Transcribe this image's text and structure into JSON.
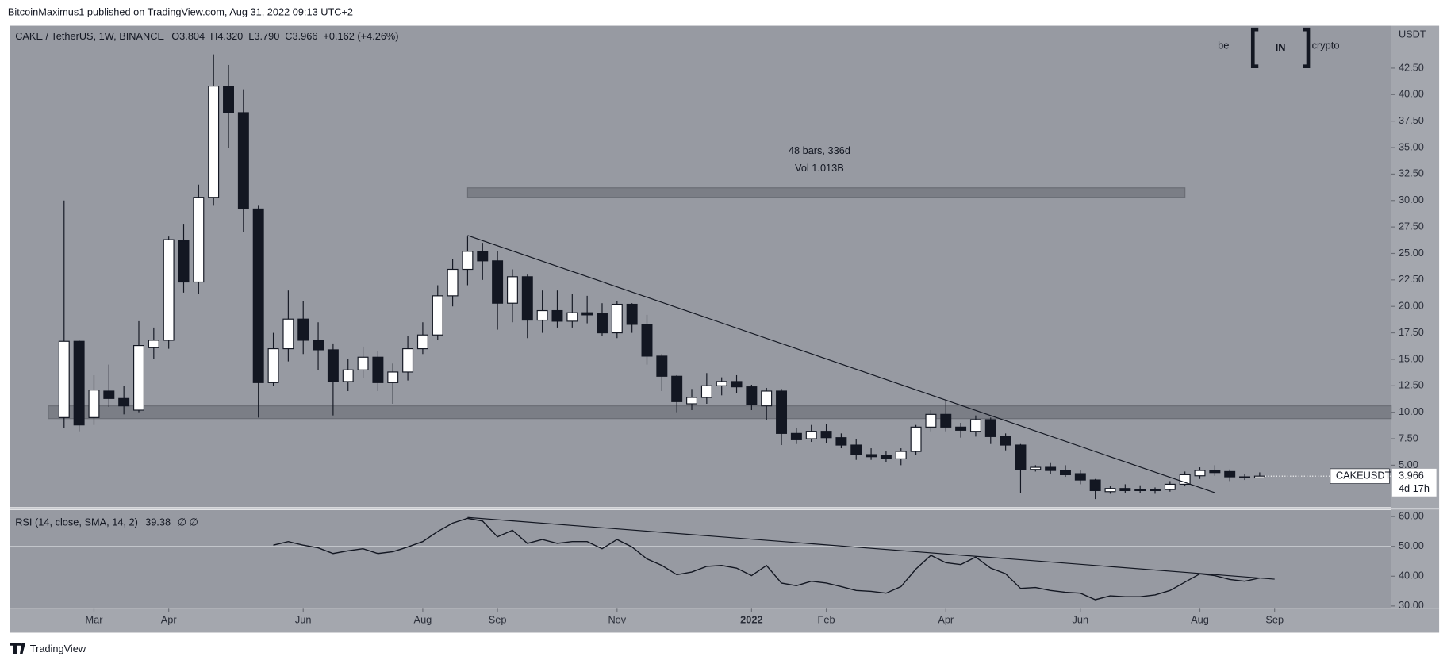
{
  "publisher": "BitcoinMaximus1 published on TradingView.com, Aug 31, 2022 09:13 UTC+2",
  "footer": "TradingView",
  "logo": [
    "be",
    "IN",
    "crypto"
  ],
  "chart_data": [
    {
      "type": "candlestick",
      "legend": {
        "symbol": "CAKE / TetherUS, 1W, BINANCE",
        "items": [
          "O3.804",
          "H4.320",
          "L3.790",
          "C3.966",
          "+0.162 (+4.26%)"
        ]
      },
      "axis_unit": "USDT",
      "up_color": "#ffffff",
      "down_color": "#131722",
      "open": [
        9.5,
        16.7,
        9.5,
        12.0,
        11.3,
        10.2,
        16.1,
        16.8,
        26.2,
        22.3,
        30.3,
        40.8,
        38.3,
        29.2,
        12.8,
        16.0,
        18.8,
        16.8,
        15.9,
        12.9,
        14.0,
        15.2,
        12.8,
        13.8,
        16.0,
        17.3,
        21.0,
        23.5,
        25.2,
        24.3,
        20.3,
        22.8,
        18.7,
        19.6,
        18.6,
        19.4,
        19.3,
        17.5,
        20.2,
        18.3,
        15.3,
        13.4,
        10.8,
        11.4,
        12.5,
        12.9,
        12.4,
        10.6,
        12.0,
        8.0,
        7.5,
        8.2,
        7.6,
        6.9,
        6.0,
        5.9,
        5.6,
        6.3,
        8.6,
        9.8,
        8.6,
        8.2,
        9.3,
        7.7,
        6.9,
        4.6,
        4.8,
        4.5,
        4.2,
        3.6,
        2.5,
        2.8,
        2.7,
        2.7,
        2.7,
        3.2,
        4.0,
        4.5,
        4.4,
        3.9,
        3.804
      ],
      "high": [
        30,
        16.8,
        13.5,
        14.5,
        12.5,
        18.6,
        18.0,
        26.6,
        27.8,
        31.5,
        43.8,
        42.8,
        40.5,
        29.5,
        17.5,
        21.5,
        20.5,
        18.5,
        16.5,
        15.0,
        16.2,
        15.8,
        14.6,
        17.2,
        18.5,
        22.0,
        24.5,
        26.6,
        26.0,
        25.2,
        23.5,
        23.0,
        21.5,
        21.5,
        21.2,
        21.0,
        20.3,
        20.5,
        20.3,
        19.2,
        15.5,
        13.5,
        12.2,
        13.7,
        13.3,
        13.5,
        12.6,
        12.3,
        12.2,
        8.5,
        8.8,
        8.9,
        8.0,
        7.5,
        6.6,
        6.3,
        6.6,
        8.8,
        10.2,
        11.2,
        9.0,
        9.7,
        9.5,
        8.0,
        7.0,
        5.0,
        5.2,
        5.0,
        4.5,
        3.7,
        3.0,
        3.2,
        3.1,
        2.9,
        3.5,
        4.4,
        4.8,
        5.0,
        4.6,
        4.2,
        4.32
      ],
      "low": [
        8.5,
        8.2,
        8.8,
        10.5,
        9.8,
        10.0,
        15.0,
        16.0,
        21.3,
        21.2,
        29.5,
        35.0,
        27.0,
        9.5,
        12.5,
        14.8,
        15.5,
        14.0,
        9.7,
        12.0,
        13.2,
        12.0,
        10.8,
        13.0,
        15.5,
        16.8,
        20.0,
        22.0,
        22.5,
        17.8,
        18.5,
        17.0,
        17.5,
        18.0,
        18.0,
        18.4,
        17.2,
        17.0,
        17.5,
        14.5,
        12.0,
        10.0,
        10.2,
        10.8,
        11.6,
        11.8,
        10.2,
        9.3,
        6.9,
        7.0,
        7.2,
        7.1,
        6.6,
        5.5,
        5.5,
        5.3,
        5.0,
        6.0,
        8.2,
        8.2,
        7.6,
        7.7,
        7.0,
        6.4,
        2.4,
        4.4,
        4.2,
        3.9,
        3.2,
        1.8,
        2.3,
        2.4,
        2.4,
        2.3,
        2.5,
        3.0,
        3.7,
        4.0,
        3.5,
        3.6,
        3.79
      ],
      "close": [
        16.7,
        8.8,
        12.1,
        11.3,
        10.6,
        16.3,
        16.8,
        26.3,
        22.3,
        30.3,
        40.8,
        38.3,
        29.2,
        12.8,
        16.0,
        18.8,
        16.8,
        15.9,
        12.9,
        14.0,
        15.2,
        12.8,
        13.8,
        16.0,
        17.3,
        21.0,
        23.5,
        25.2,
        24.3,
        20.3,
        22.8,
        18.7,
        19.6,
        18.6,
        19.4,
        19.2,
        17.5,
        20.2,
        18.3,
        15.3,
        13.4,
        11.0,
        11.4,
        12.5,
        12.9,
        12.4,
        10.7,
        12.0,
        8.0,
        7.4,
        8.2,
        7.6,
        6.9,
        6.0,
        5.8,
        5.6,
        6.3,
        8.6,
        9.8,
        8.6,
        8.3,
        9.3,
        7.7,
        6.9,
        4.6,
        4.8,
        4.5,
        4.1,
        3.6,
        2.6,
        2.8,
        2.6,
        2.6,
        2.6,
        3.2,
        4.1,
        4.5,
        4.3,
        3.9,
        3.8,
        3.966
      ],
      "xlim": [
        -3.64,
        88.8
      ],
      "ylim": [
        1.03,
        46.5
      ],
      "yticks": [
        {
          "value": 42.5,
          "label": "42.50"
        },
        {
          "value": 40,
          "label": "40.00"
        },
        {
          "value": 37.5,
          "label": "37.50"
        },
        {
          "value": 35,
          "label": "35.00"
        },
        {
          "value": 32.5,
          "label": "32.50"
        },
        {
          "value": 30,
          "label": "30.00"
        },
        {
          "value": 27.5,
          "label": "27.50"
        },
        {
          "value": 25,
          "label": "25.00"
        },
        {
          "value": 22.5,
          "label": "22.50"
        },
        {
          "value": 20,
          "label": "20.00"
        },
        {
          "value": 17.5,
          "label": "17.50"
        },
        {
          "value": 15,
          "label": "15.00"
        },
        {
          "value": 12.5,
          "label": "12.50"
        },
        {
          "value": 10,
          "label": "10.00"
        },
        {
          "value": 7.5,
          "label": "7.50"
        },
        {
          "value": 5,
          "label": "5.00"
        }
      ],
      "xticks": [
        {
          "value": 2,
          "label": "Mar"
        },
        {
          "value": 7,
          "label": "Apr"
        },
        {
          "value": 16,
          "label": "Jun"
        },
        {
          "value": 24,
          "label": "Aug"
        },
        {
          "value": 29,
          "label": "Sep"
        },
        {
          "value": 37,
          "label": "Nov"
        },
        {
          "value": 46,
          "label": "2022"
        },
        {
          "value": 51,
          "label": "Feb"
        },
        {
          "value": 59,
          "label": "Apr"
        },
        {
          "value": 68,
          "label": "Jun"
        },
        {
          "value": 76,
          "label": "Aug"
        },
        {
          "value": 81,
          "label": "Sep"
        }
      ],
      "trendline": {
        "x": [
          27,
          77
        ],
        "y": [
          26.7,
          2.4
        ]
      },
      "zones": [
        {
          "x": [
            -1.05,
            88.8
          ],
          "y": [
            9.4,
            10.6
          ]
        },
        {
          "x": [
            27,
            75
          ],
          "y": [
            30.3,
            31.2
          ]
        }
      ],
      "measure_labels": [
        "48 bars, 336d",
        "Vol 1.013B"
      ],
      "last_price": {
        "name": "CAKEUSDT",
        "value": 3.966,
        "value_label": "3.966",
        "countdown": "4d 17h"
      }
    },
    {
      "type": "line",
      "legend": {
        "name": "RSI (14, close, SMA, 14, 2)",
        "value_label": "39.38",
        "extra": "∅ ∅"
      },
      "color": "#131722",
      "values": [
        null,
        null,
        null,
        null,
        null,
        null,
        null,
        null,
        null,
        null,
        null,
        null,
        null,
        null,
        50.4,
        51.6,
        50.4,
        49.5,
        47.6,
        48.5,
        49.2,
        47.6,
        48.2,
        49.8,
        51.6,
        55.0,
        57.8,
        59.4,
        58.5,
        53.2,
        55.4,
        51.0,
        52.3,
        51.0,
        51.6,
        51.6,
        49.2,
        52.3,
        49.8,
        45.8,
        43.6,
        40.5,
        41.4,
        43.3,
        43.6,
        42.7,
        40.2,
        43.6,
        37.7,
        36.8,
        38.3,
        37.7,
        36.5,
        35.2,
        34.9,
        34.3,
        36.5,
        42.4,
        47.0,
        44.5,
        43.9,
        46.4,
        42.7,
        40.8,
        35.9,
        36.2,
        35.2,
        34.6,
        34.3,
        32.1,
        33.4,
        33.1,
        33.1,
        33.7,
        35.2,
        38.0,
        40.8,
        40.2,
        38.9,
        38.3,
        39.38
      ],
      "ylim": [
        29.1,
        62.2
      ],
      "yticks": [
        {
          "value": 60,
          "label": "60.00"
        },
        {
          "value": 50,
          "label": "50.00"
        },
        {
          "value": 40,
          "label": "40.00"
        },
        {
          "value": 30,
          "label": "30.00"
        }
      ],
      "trendline": {
        "x": [
          27,
          81
        ],
        "y": [
          59.7,
          39.0
        ]
      }
    }
  ]
}
